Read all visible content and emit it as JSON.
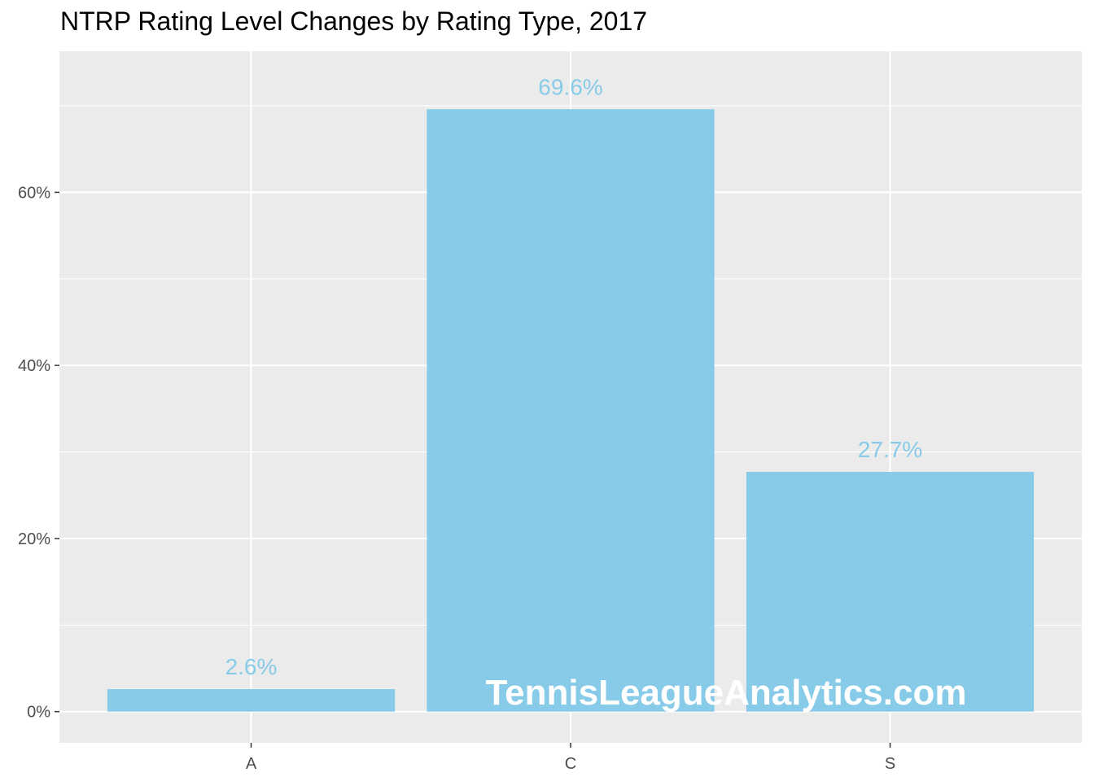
{
  "chart_data": {
    "type": "bar",
    "title": "NTRP Rating Level Changes by Rating Type, 2017",
    "xlabel": "",
    "ylabel": "",
    "categories": [
      "A",
      "C",
      "S"
    ],
    "values": [
      2.6,
      69.6,
      27.7
    ],
    "value_labels": [
      "2.6%",
      "69.6%",
      "27.7%"
    ],
    "ylim": [
      -3.6,
      76.3
    ],
    "yticks": [
      0,
      20,
      40,
      60
    ],
    "ytick_labels": [
      "0%",
      "20%",
      "40%",
      "60%"
    ],
    "grid": true,
    "legend": "none",
    "colors": {
      "bar": "#87CBE8",
      "panel": "#EBEBEB",
      "grid": "#FFFFFF",
      "label": "#87CBE8",
      "tick_text": "#4D4D4D"
    }
  },
  "watermark": "TennisLeagueAnalytics.com"
}
